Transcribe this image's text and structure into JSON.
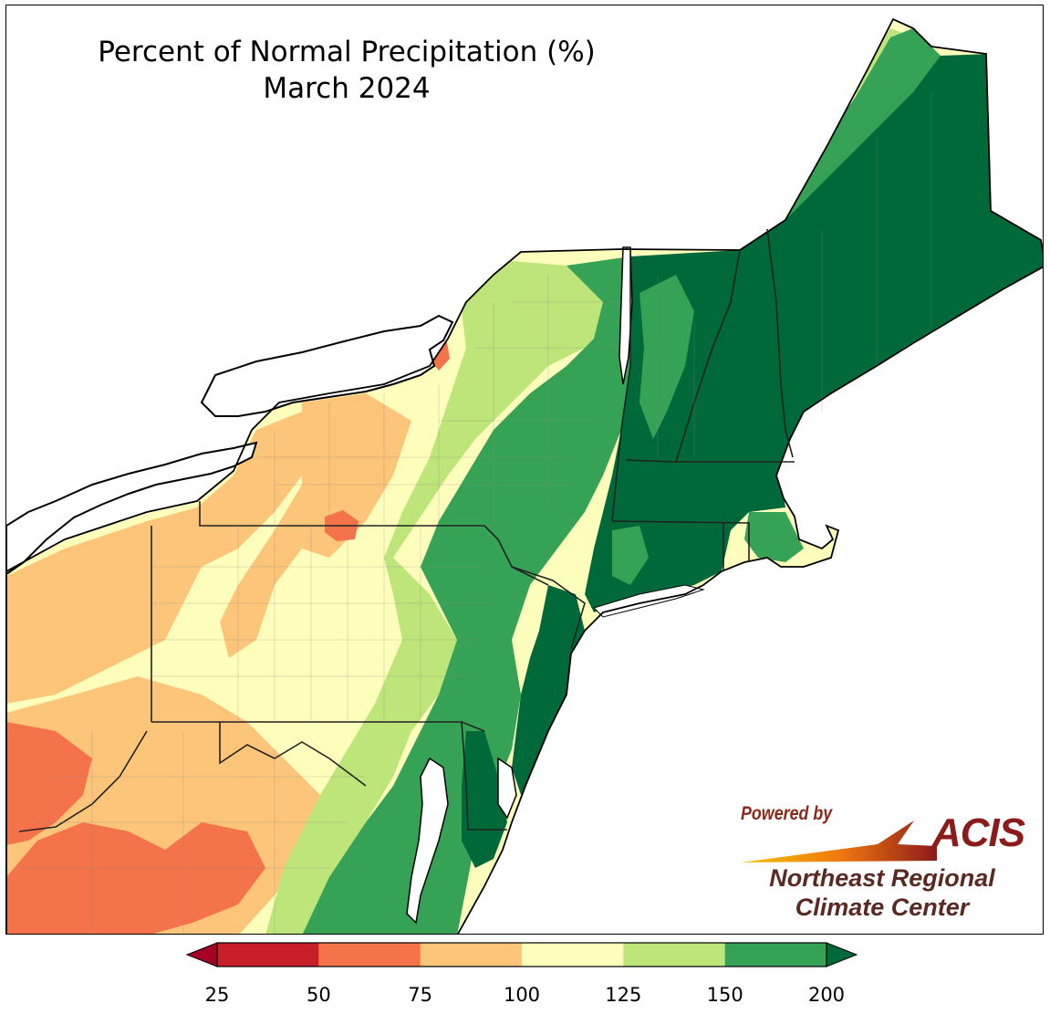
{
  "map": {
    "title_line1": "Percent of Normal Precipitation (%)",
    "title_line2": "March 2024"
  },
  "logo": {
    "powered_by": "Powered by",
    "brand": "ACIS",
    "org_line1": "Northeast Regional",
    "org_line2": "Climate Center"
  },
  "legend": {
    "bins": [
      {
        "from": 25,
        "to": 50,
        "color": "#c81e27"
      },
      {
        "from": 50,
        "to": 75,
        "color": "#f4734a"
      },
      {
        "from": 75,
        "to": 100,
        "color": "#fdc57a"
      },
      {
        "from": 100,
        "to": 125,
        "color": "#fefebc"
      },
      {
        "from": 125,
        "to": 150,
        "color": "#bde57a"
      },
      {
        "from": 150,
        "to": 200,
        "color": "#36a255"
      }
    ],
    "under_color": "#a50026",
    "over_color": "#00693a",
    "tick_labels": [
      "25",
      "50",
      "75",
      "100",
      "125",
      "150",
      "200"
    ]
  },
  "colors": {
    "deep_green": "#00693a",
    "green": "#36a255",
    "light_green": "#bde57a",
    "pale_yellow": "#fefebc",
    "light_orange": "#fdc57a",
    "orange": "#f4734a",
    "red": "#c81e27",
    "dark_red": "#a50026"
  }
}
